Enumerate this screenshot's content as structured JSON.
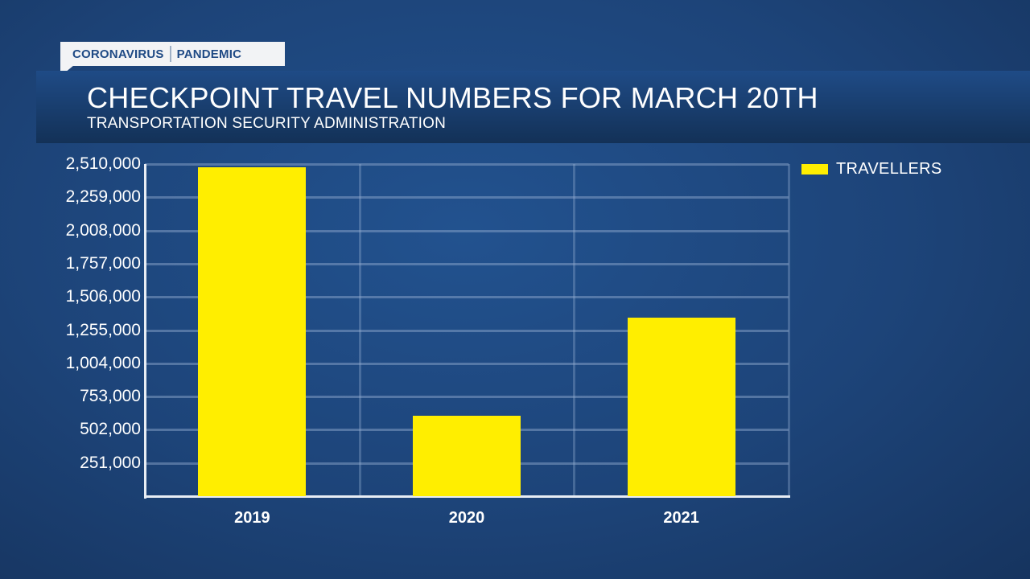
{
  "header": {
    "tag_left": "CORONAVIRUS",
    "tag_right": "PANDEMIC",
    "title": "CHECKPOINT TRAVEL NUMBERS FOR MARCH 20TH",
    "subtitle": "TRANSPORTATION SECURITY ADMINISTRATION"
  },
  "colors": {
    "bar": "#ffee00",
    "background": "#1d4479",
    "tag_text": "#1f4a85"
  },
  "chart_data": {
    "type": "bar",
    "title": "CHECKPOINT TRAVEL NUMBERS FOR MARCH 20TH",
    "subtitle": "TRANSPORTATION SECURITY ADMINISTRATION",
    "categories": [
      "2019",
      "2020",
      "2021"
    ],
    "series": [
      {
        "name": "TRAVELLERS",
        "values": [
          2485000,
          606000,
          1352000
        ]
      }
    ],
    "xlabel": "",
    "ylabel": "",
    "ylim": [
      0,
      2510000
    ],
    "yticks": [
      "251,000",
      "502,000",
      "753,000",
      "1,004,000",
      "1,255,000",
      "1,506,000",
      "1,757,000",
      "2,008,000",
      "2,259,000",
      "2,510,000"
    ],
    "grid": true,
    "legend_position": "right-top"
  },
  "legend": {
    "label": "TRAVELLERS"
  }
}
